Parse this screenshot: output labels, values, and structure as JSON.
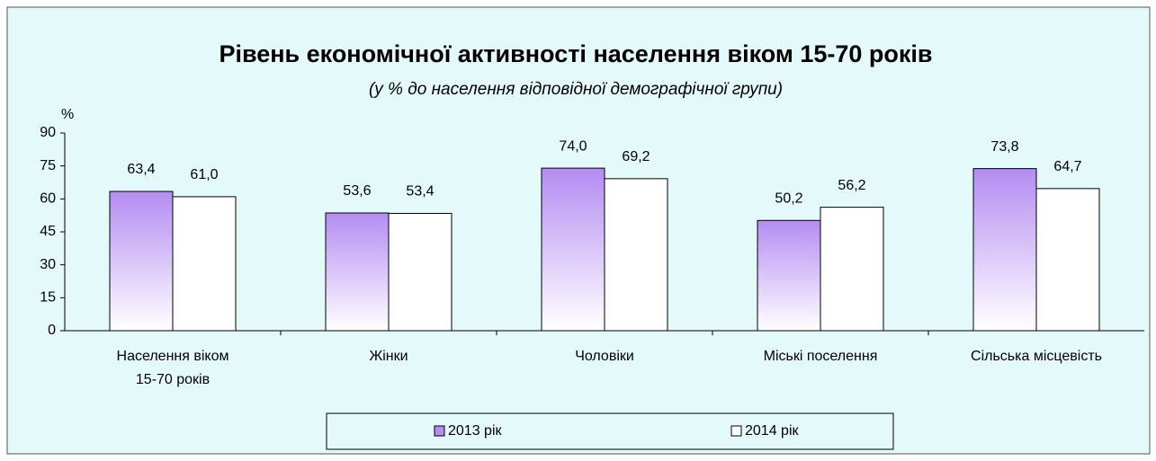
{
  "chart_data": {
    "type": "bar",
    "title": "Рівень економічної активності населення віком 15-70 років",
    "subtitle": "(у % до населення відповідної демографічної групи)",
    "y_label": "%",
    "categories": [
      "Населення віком\n15-70 років",
      "Жінки",
      "Чоловіки",
      "Міські поселення",
      "Сільська місцевість"
    ],
    "series": [
      {
        "name": "2013 рік",
        "color": "#b48cf2",
        "values": [
          63.4,
          53.6,
          74.0,
          50.2,
          73.8
        ],
        "value_labels": [
          "63,4",
          "53,6",
          "74,0",
          "50,2",
          "73,8"
        ]
      },
      {
        "name": "2014 рік",
        "color": "#ffffff",
        "values": [
          61.0,
          53.4,
          69.2,
          56.2,
          64.7
        ],
        "value_labels": [
          "61,0",
          "53,4",
          "69,2",
          "56,2",
          "64,7"
        ]
      }
    ],
    "ylim": [
      0,
      90
    ],
    "yticks": [
      0,
      15,
      30,
      45,
      60,
      75,
      90
    ],
    "grid": false,
    "legend": "bottom"
  }
}
